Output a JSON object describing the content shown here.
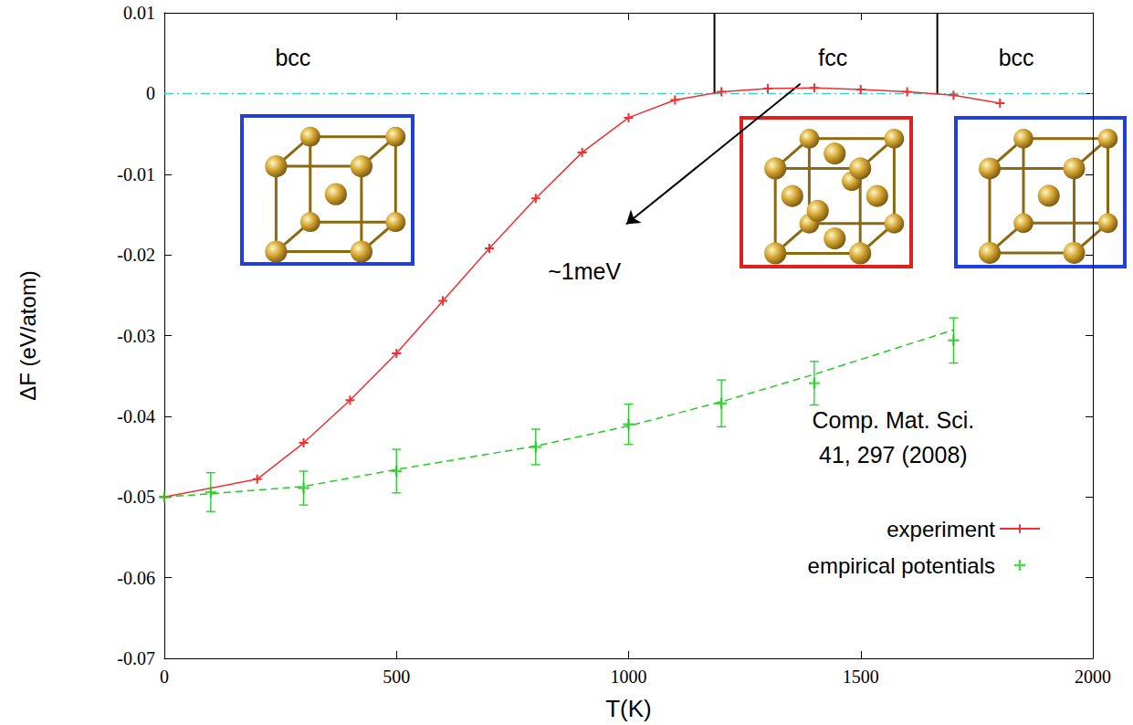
{
  "chart_data": {
    "type": "line",
    "x_label": "T(K)",
    "y_label": "ΔF (eV/atom)",
    "xlim": [
      0,
      2000
    ],
    "xticks": [
      0,
      500,
      1000,
      1500,
      2000
    ],
    "ylim": [
      -0.07,
      0.01
    ],
    "yticks": [
      -0.07,
      -0.06,
      -0.05,
      -0.04,
      -0.03,
      -0.02,
      -0.01,
      0,
      0.01
    ],
    "grid": false,
    "legend": "lower right",
    "series": [
      {
        "name": "experiment",
        "type": "line",
        "color": "#f03030",
        "marker": "plus",
        "line_style": "solid",
        "x": [
          0,
          200,
          300,
          400,
          500,
          600,
          700,
          800,
          900,
          1000,
          1100,
          1200,
          1300,
          1400,
          1500,
          1600,
          1700,
          1800
        ],
        "values": [
          -0.05,
          -0.0478,
          -0.0433,
          -0.038,
          -0.0322,
          -0.0257,
          -0.0192,
          -0.013,
          -0.0073,
          -0.003,
          -0.0008,
          0.0002,
          0.0006,
          0.0007,
          0.0005,
          0.0002,
          -0.0002,
          -0.0012
        ]
      },
      {
        "name": "empirical potentials",
        "type": "scatter",
        "color": "#22cc22",
        "marker": "plus",
        "x": [
          0,
          100,
          300,
          500,
          800,
          1000,
          1200,
          1400,
          1700
        ],
        "values": [
          -0.05,
          -0.0494,
          -0.0489,
          -0.0468,
          -0.0438,
          -0.041,
          -0.0384,
          -0.0359,
          -0.0306
        ],
        "errors": [
          0,
          0.0024,
          0.0021,
          0.0027,
          0.0022,
          0.0025,
          0.0029,
          0.0027,
          0.0028
        ]
      },
      {
        "type": "line",
        "color": "#22cc22",
        "line_style": "dashed",
        "x": [
          0,
          100,
          300,
          500,
          800,
          1000,
          1200,
          1400,
          1700
        ],
        "values": [
          -0.05,
          -0.0496,
          -0.0487,
          -0.0466,
          -0.0437,
          -0.0412,
          -0.0382,
          -0.0348,
          -0.0293
        ]
      }
    ],
    "reference_lines": [
      {
        "y": 0,
        "color": "#40d0d0",
        "line_style": "dashdot"
      }
    ],
    "phase_boundaries": [
      {
        "x": 1185,
        "y": [
          0,
          0.01
        ]
      },
      {
        "x": 1665,
        "y": [
          0,
          0.01
        ]
      }
    ],
    "annotations": [
      {
        "text": "bcc",
        "x": 277,
        "y": 0.0045
      },
      {
        "text": "fcc",
        "x": 1440,
        "y": 0.0045
      },
      {
        "text": "bcc",
        "x": 1835,
        "y": 0.0045
      },
      {
        "text": "~1meV",
        "x": 905,
        "y": -0.022,
        "arrow": {
          "from": [
            1370,
            0.0012
          ],
          "to": [
            995,
            -0.0162
          ]
        }
      },
      {
        "text": "Comp. Mat. Sci.",
        "x": 1570,
        "y": -0.0405
      },
      {
        "text": "41, 297 (2008)",
        "x": 1570,
        "y": -0.0448
      }
    ]
  }
}
